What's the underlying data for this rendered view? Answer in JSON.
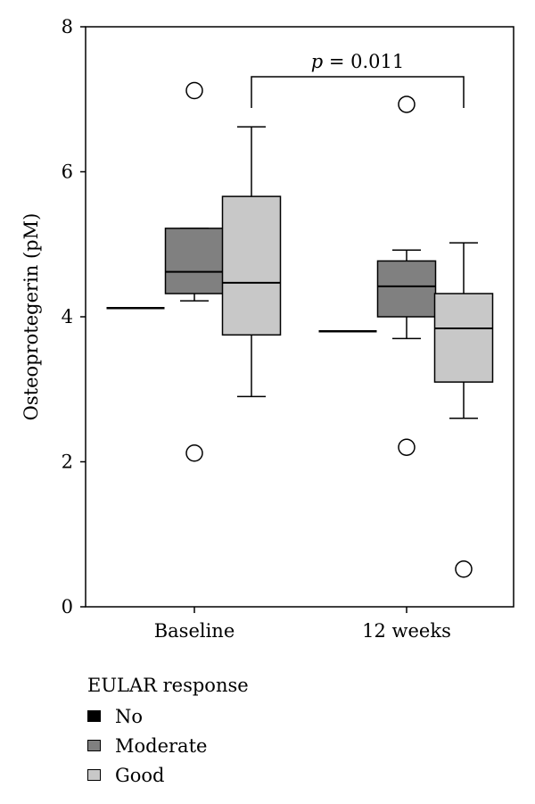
{
  "chart_data": {
    "type": "box",
    "ylabel": "Osteoprotegerin (pM)",
    "xlabel": "",
    "ylim": [
      0,
      8
    ],
    "yticks": [
      "0",
      "2",
      "4",
      "6",
      "8"
    ],
    "categories": [
      "Baseline",
      "12 weeks"
    ],
    "grid": false,
    "legend": {
      "title": "EULAR response",
      "position": "bottom-left",
      "items": [
        {
          "label": "No",
          "color": "#000000"
        },
        {
          "label": "Moderate",
          "color": "#808080"
        },
        {
          "label": "Good",
          "color": "#c8c8c8"
        }
      ]
    },
    "series": [
      {
        "name": "No",
        "color": "#000000",
        "boxes": [
          {
            "category": "Baseline",
            "min": 4.12,
            "q1": 4.12,
            "median": 4.12,
            "q3": 4.12,
            "max": 4.12,
            "outliers": []
          },
          {
            "category": "12 weeks",
            "min": 3.8,
            "q1": 3.8,
            "median": 3.8,
            "q3": 3.8,
            "max": 3.8,
            "outliers": []
          }
        ]
      },
      {
        "name": "Moderate",
        "color": "#808080",
        "boxes": [
          {
            "category": "Baseline",
            "min": 4.22,
            "q1": 4.32,
            "median": 4.62,
            "q3": 5.22,
            "max": 5.22,
            "outliers": [
              7.12,
              2.12
            ]
          },
          {
            "category": "12 weeks",
            "min": 3.7,
            "q1": 4.0,
            "median": 4.42,
            "q3": 4.77,
            "max": 4.92,
            "outliers": [
              6.93,
              2.2
            ]
          }
        ]
      },
      {
        "name": "Good",
        "color": "#c8c8c8",
        "boxes": [
          {
            "category": "Baseline",
            "min": 2.9,
            "q1": 3.75,
            "median": 4.47,
            "q3": 5.66,
            "max": 6.62,
            "outliers": []
          },
          {
            "category": "12 weeks",
            "min": 2.6,
            "q1": 3.1,
            "median": 3.84,
            "q3": 4.32,
            "max": 5.02,
            "outliers": [
              0.52
            ]
          }
        ]
      }
    ],
    "annotation": {
      "p_symbol": "p",
      "text": " = 0.011",
      "between": [
        "Baseline",
        "12 weeks"
      ]
    }
  }
}
